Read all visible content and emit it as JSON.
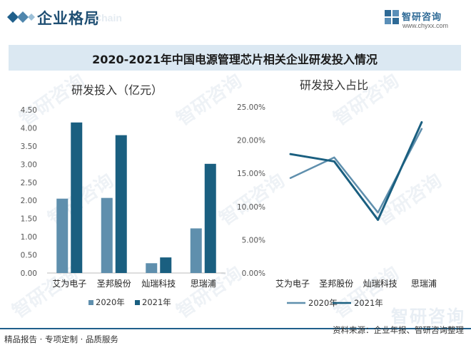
{
  "header": {
    "title": "企业格局",
    "watermark": "Chain",
    "brand_name": "智研咨询",
    "brand_url": "www.chyxx.com"
  },
  "main_title": "2020-2021年中国电源管理芯片相关企业研发投入情况",
  "watermark_text": "智研咨询",
  "colors": {
    "series_2020": "#5f8fad",
    "series_2021": "#1a5f80",
    "title_bar": "#dbe8f2",
    "accent": "#1f5f8b"
  },
  "chart_data": [
    {
      "type": "bar",
      "title": "研发投入（亿元）",
      "categories": [
        "艾为电子",
        "圣邦股份",
        "灿瑞科技",
        "思瑞浦"
      ],
      "series": [
        {
          "name": "2020年",
          "values": [
            2.05,
            2.07,
            0.27,
            1.23
          ]
        },
        {
          "name": "2021年",
          "values": [
            4.15,
            3.8,
            0.43,
            3.01
          ]
        }
      ],
      "ylim": [
        0,
        4.5
      ],
      "yticks": [
        "0.00",
        "0.50",
        "1.00",
        "1.50",
        "2.00",
        "2.50",
        "3.00",
        "3.50",
        "4.00",
        "4.50"
      ],
      "legend": "bottom"
    },
    {
      "type": "line",
      "title": "研发投入占比",
      "categories": [
        "艾为电子",
        "圣邦股份",
        "灿瑞科技",
        "思瑞浦"
      ],
      "series": [
        {
          "name": "2020年",
          "values": [
            14.3,
            17.4,
            9.1,
            21.7
          ]
        },
        {
          "name": "2021年",
          "values": [
            17.9,
            16.8,
            8.0,
            22.7
          ]
        }
      ],
      "ylim": [
        0,
        25
      ],
      "yticks": [
        "0.00%",
        "5.00%",
        "10.00%",
        "15.00%",
        "20.00%",
        "25.00%"
      ],
      "legend": "bottom"
    }
  ],
  "footer": {
    "left": "精品报告 · 专项定制 · 品质服务",
    "right": "资料来源：企业年报、智研咨询整理",
    "brand": "智研咨询"
  }
}
